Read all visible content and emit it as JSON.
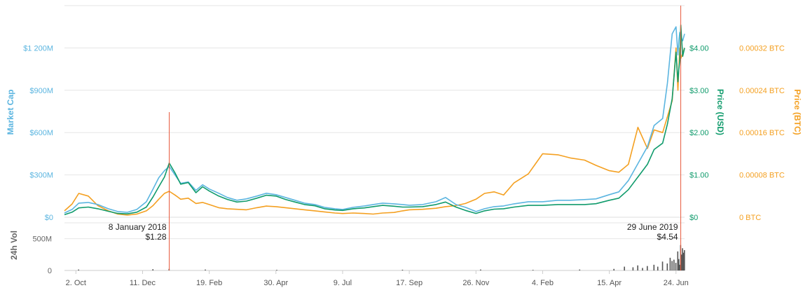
{
  "colors": {
    "market_cap": "#5bb5e0",
    "price_usd": "#109b6c",
    "price_btc": "#f4a021",
    "volume": "#555555",
    "marker": "#e8593c",
    "grid": "#e6e6e6",
    "axis_text": "#666666"
  },
  "chart_data": [
    {
      "type": "line",
      "x": [
        "2017-09-20",
        "2017-09-28",
        "2017-10-05",
        "2017-10-15",
        "2017-10-25",
        "2017-11-05",
        "2017-11-15",
        "2017-11-25",
        "2017-12-05",
        "2017-12-15",
        "2017-12-22",
        "2017-12-28",
        "2018-01-03",
        "2018-01-08",
        "2018-01-14",
        "2018-01-20",
        "2018-01-28",
        "2018-02-05",
        "2018-02-12",
        "2018-02-19",
        "2018-03-01",
        "2018-03-10",
        "2018-03-20",
        "2018-03-30",
        "2018-04-10",
        "2018-04-20",
        "2018-04-30",
        "2018-05-10",
        "2018-05-20",
        "2018-05-30",
        "2018-06-10",
        "2018-06-20",
        "2018-07-01",
        "2018-07-09",
        "2018-07-20",
        "2018-08-01",
        "2018-08-10",
        "2018-08-20",
        "2018-09-01",
        "2018-09-10",
        "2018-09-17",
        "2018-10-01",
        "2018-10-15",
        "2018-10-25",
        "2018-11-05",
        "2018-11-15",
        "2018-11-26",
        "2018-12-05",
        "2018-12-15",
        "2018-12-25",
        "2019-01-05",
        "2019-01-20",
        "2019-02-04",
        "2019-02-20",
        "2019-03-05",
        "2019-03-20",
        "2019-04-01",
        "2019-04-15",
        "2019-04-25",
        "2019-05-05",
        "2019-05-15",
        "2019-05-25",
        "2019-06-01",
        "2019-06-10",
        "2019-06-15",
        "2019-06-20",
        "2019-06-24",
        "2019-06-26",
        "2019-06-27",
        "2019-06-28",
        "2019-06-29",
        "2019-07-01",
        "2019-07-03"
      ],
      "series": [
        {
          "axis": "market_cap",
          "values": [
            30,
            55,
            100,
            105,
            90,
            60,
            40,
            35,
            55,
            110,
            200,
            280,
            330,
            360,
            300,
            240,
            250,
            190,
            230,
            200,
            170,
            140,
            120,
            130,
            150,
            170,
            160,
            140,
            120,
            100,
            90,
            70,
            60,
            55,
            70,
            80,
            90,
            100,
            95,
            90,
            85,
            90,
            110,
            140,
            90,
            70,
            40,
            60,
            75,
            80,
            95,
            110,
            110,
            120,
            120,
            125,
            130,
            160,
            180,
            260,
            380,
            500,
            650,
            700,
            950,
            1300,
            1350,
            1150,
            1250,
            1310,
            1280,
            1250,
            1300
          ]
        },
        {
          "axis": "price_usd",
          "values": [
            0.06,
            0.12,
            0.22,
            0.24,
            0.2,
            0.14,
            0.09,
            0.08,
            0.12,
            0.24,
            0.48,
            0.72,
            0.95,
            1.28,
            1.05,
            0.78,
            0.82,
            0.58,
            0.72,
            0.62,
            0.5,
            0.42,
            0.36,
            0.38,
            0.45,
            0.52,
            0.5,
            0.42,
            0.36,
            0.3,
            0.27,
            0.2,
            0.17,
            0.16,
            0.2,
            0.22,
            0.25,
            0.28,
            0.26,
            0.24,
            0.24,
            0.25,
            0.3,
            0.36,
            0.24,
            0.16,
            0.09,
            0.15,
            0.19,
            0.2,
            0.24,
            0.28,
            0.28,
            0.3,
            0.3,
            0.3,
            0.32,
            0.4,
            0.45,
            0.65,
            0.95,
            1.25,
            1.6,
            1.75,
            2.2,
            2.8,
            3.9,
            3.2,
            3.5,
            3.7,
            4.54,
            3.8,
            4.0
          ]
        },
        {
          "axis": "price_btc",
          "values": [
            1.2e-05,
            2.5e-05,
            4.5e-05,
            4e-05,
            2.2e-05,
            1.2e-05,
            6e-06,
            4e-06,
            6e-06,
            1.2e-05,
            2.2e-05,
            3.4e-05,
            4.5e-05,
            4.9e-05,
            4.2e-05,
            3.4e-05,
            3.6e-05,
            2.6e-05,
            2.8e-05,
            2.4e-05,
            1.8e-05,
            1.6e-05,
            1.5e-05,
            1.4e-05,
            1.8e-05,
            2.1e-05,
            2e-05,
            1.8e-05,
            1.6e-05,
            1.4e-05,
            1.2e-05,
            1e-05,
            8e-06,
            7e-06,
            8e-06,
            7e-06,
            6e-06,
            8e-06,
            9e-06,
            1.2e-05,
            1.4e-05,
            1.5e-05,
            1.7e-05,
            2e-05,
            2.2e-05,
            2.6e-05,
            3.4e-05,
            4.5e-05,
            4.8e-05,
            4.2e-05,
            6.5e-05,
            8.2e-05,
            0.00012,
            0.000118,
            0.000112,
            0.000108,
            9.8e-05,
            8.8e-05,
            8.5e-05,
            0.0001,
            0.00017,
            0.00013,
            0.000165,
            0.00016,
            0.00019,
            0.00022,
            0.00032,
            0.00024,
            0.00028,
            0.00032,
            0.0003,
            0.00031,
            0.00032
          ]
        }
      ],
      "xticks": [
        "2. Oct",
        "11. Dec",
        "19. Feb",
        "30. Apr",
        "9. Jul",
        "17. Sep",
        "26. Nov",
        "4. Feb",
        "15. Apr",
        "24. Jun"
      ],
      "xtick_dates": [
        "2017-10-02",
        "2017-12-11",
        "2018-02-19",
        "2018-04-30",
        "2018-07-09",
        "2018-09-17",
        "2018-11-26",
        "2019-02-04",
        "2019-04-15",
        "2019-06-24"
      ],
      "axes": {
        "market_cap": {
          "title": "Market Cap",
          "ticks": [
            "$0",
            "$300M",
            "$600M",
            "$900M",
            "$1 200M"
          ],
          "tick_values": [
            0,
            300,
            600,
            900,
            1200
          ],
          "range": [
            0,
            1500
          ],
          "unit": "M USD"
        },
        "price_usd": {
          "title": "Price (USD)",
          "ticks": [
            "$0",
            "$1.00",
            "$2.00",
            "$3.00",
            "$4.00"
          ],
          "tick_values": [
            0,
            1,
            2,
            3,
            4
          ],
          "range": [
            0,
            5
          ]
        },
        "price_btc": {
          "title": "Price (BTC)",
          "ticks": [
            "0 BTC",
            "0.00008 BTC",
            "0.00016 BTC",
            "0.00024 BTC",
            "0.00032 BTC"
          ],
          "tick_values": [
            0,
            8e-05,
            0.00016,
            0.00024,
            0.00032
          ],
          "range": [
            0,
            0.0004
          ]
        }
      },
      "grid": true,
      "annotations": [
        {
          "date": "2018-01-08",
          "label": "8 January 2018",
          "value": "$1.28"
        },
        {
          "date": "2019-06-29",
          "label": "29 June 2019",
          "value": "$4.54"
        }
      ]
    },
    {
      "type": "bar",
      "title": "24h Vol",
      "ticks": [
        "0",
        "500M"
      ],
      "tick_values": [
        0,
        500
      ],
      "range": [
        0,
        750
      ],
      "unit": "M USD",
      "x": [
        "2017-10-05",
        "2017-12-22",
        "2018-01-08",
        "2018-02-15",
        "2018-05-01",
        "2018-09-10",
        "2018-12-01",
        "2019-01-25",
        "2019-03-15",
        "2019-04-20",
        "2019-05-01",
        "2019-05-10",
        "2019-05-15",
        "2019-05-20",
        "2019-05-25",
        "2019-06-01",
        "2019-06-05",
        "2019-06-10",
        "2019-06-15",
        "2019-06-18",
        "2019-06-20",
        "2019-06-22",
        "2019-06-24",
        "2019-06-26",
        "2019-06-27",
        "2019-06-28",
        "2019-06-29",
        "2019-06-30",
        "2019-07-01",
        "2019-07-02",
        "2019-07-03"
      ],
      "values": [
        15,
        20,
        25,
        15,
        10,
        12,
        15,
        10,
        15,
        25,
        60,
        50,
        80,
        40,
        70,
        90,
        60,
        140,
        110,
        200,
        150,
        170,
        120,
        300,
        180,
        90,
        400,
        250,
        350,
        280,
        320
      ]
    }
  ]
}
